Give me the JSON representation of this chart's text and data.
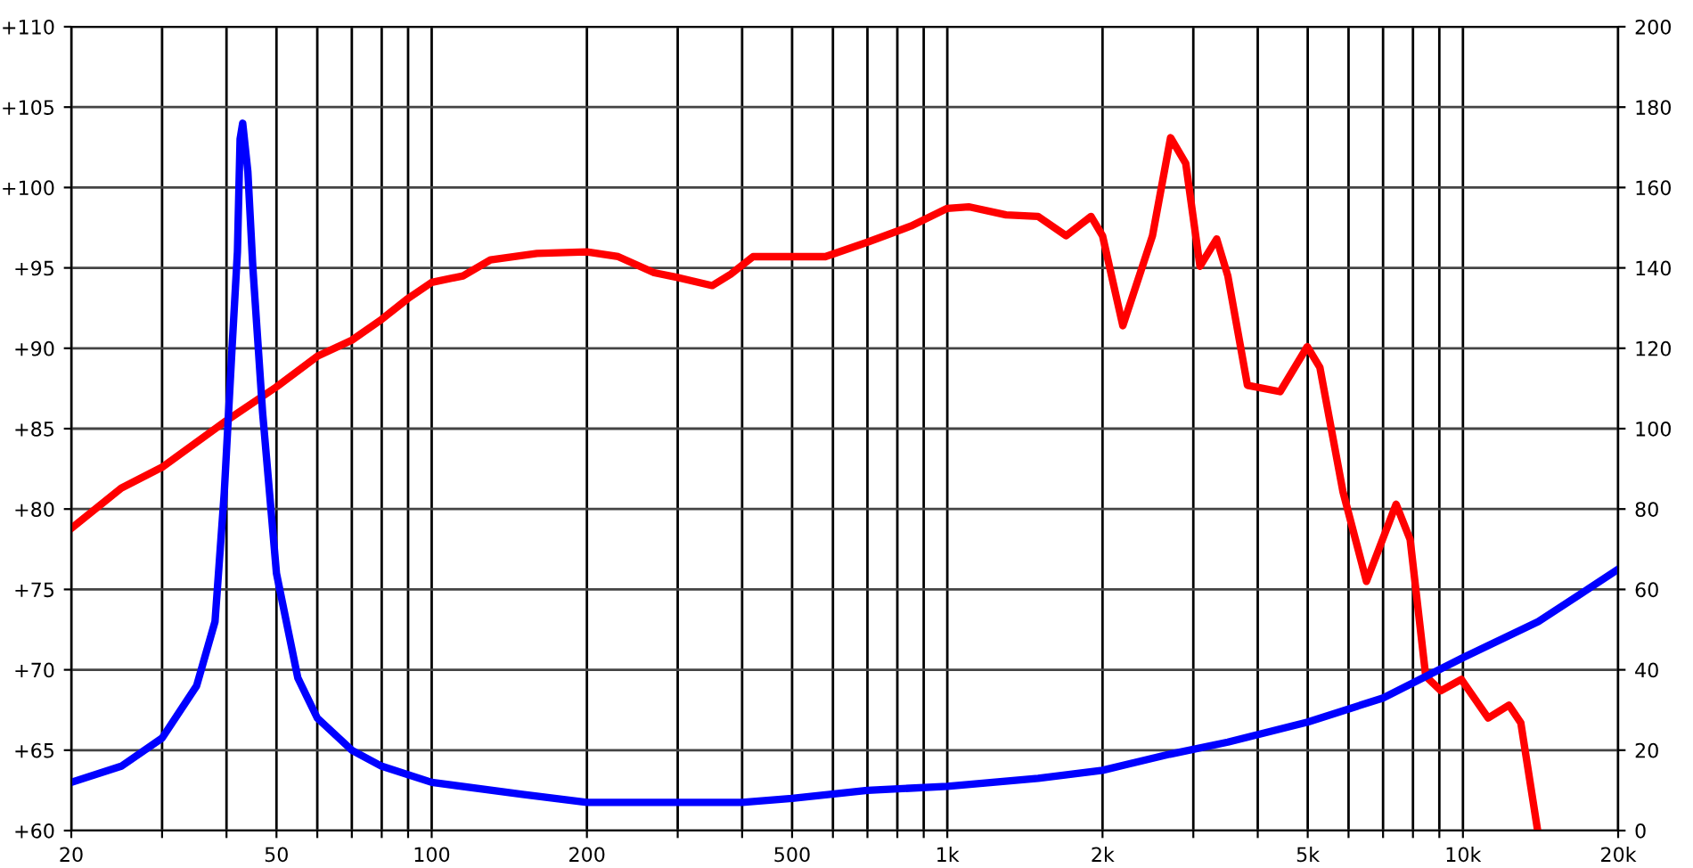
{
  "chart_data": {
    "type": "line",
    "log": "x",
    "grid": true,
    "xlim": [
      20,
      20000
    ],
    "xticks": [
      20,
      {
        "value": 30,
        "label": null
      },
      {
        "value": 40,
        "label": null
      },
      50,
      {
        "value": 60,
        "label": null
      },
      {
        "value": 70,
        "label": null
      },
      {
        "value": 80,
        "label": null
      },
      {
        "value": 90,
        "label": null
      },
      100,
      200,
      {
        "value": 300,
        "label": null
      },
      {
        "value": 400,
        "label": null
      },
      500,
      {
        "value": 600,
        "label": null
      },
      {
        "value": 700,
        "label": null
      },
      {
        "value": 800,
        "label": null
      },
      {
        "value": 900,
        "label": null
      },
      {
        "value": 1000,
        "label": "1k"
      },
      {
        "value": 2000,
        "label": "2k"
      },
      {
        "value": 3000,
        "label": null
      },
      {
        "value": 4000,
        "label": null
      },
      {
        "value": 5000,
        "label": "5k"
      },
      {
        "value": 6000,
        "label": null
      },
      {
        "value": 7000,
        "label": null
      },
      {
        "value": 8000,
        "label": null
      },
      {
        "value": 9000,
        "label": null
      },
      {
        "value": 10000,
        "label": "10k"
      },
      {
        "value": 20000,
        "label": "20k"
      }
    ],
    "ylim": [
      60,
      110
    ],
    "yticks": [
      {
        "value": 60,
        "label": "+60"
      },
      {
        "value": 65,
        "label": "+65"
      },
      {
        "value": 70,
        "label": "+70"
      },
      {
        "value": 75,
        "label": "+75"
      },
      {
        "value": 80,
        "label": "+80"
      },
      {
        "value": 85,
        "label": "+85"
      },
      {
        "value": 90,
        "label": "+90"
      },
      {
        "value": 95,
        "label": "+95"
      },
      {
        "value": 100,
        "label": "+100"
      },
      {
        "value": 105,
        "label": "+105"
      },
      {
        "value": 110,
        "label": "+110"
      }
    ],
    "y2lim": [
      0,
      200
    ],
    "y2ticks": [
      0,
      20,
      40,
      60,
      80,
      100,
      120,
      140,
      160,
      180,
      200
    ],
    "line_style": "solid",
    "marker": "none",
    "series": [
      {
        "color": "#ff0000",
        "x": [
          20,
          25,
          30,
          40,
          50,
          60,
          70,
          80,
          90,
          100,
          115,
          130,
          160,
          200,
          230,
          270,
          300,
          350,
          380,
          420,
          500,
          580,
          700,
          850,
          1000,
          1100,
          1300,
          1500,
          1700,
          1900,
          2000,
          2190,
          2500,
          2710,
          2900,
          3090,
          3330,
          3500,
          3820,
          4420,
          4990,
          5280,
          5850,
          6500,
          7420,
          7900,
          8470,
          9060,
          9930,
          11190,
          12280,
          12950,
          13960
        ],
        "values": [
          78.8,
          81.3,
          82.6,
          85.5,
          87.6,
          89.5,
          90.5,
          91.8,
          93.1,
          94.1,
          94.5,
          95.5,
          95.9,
          96.0,
          95.7,
          94.7,
          94.4,
          93.9,
          94.6,
          95.7,
          95.7,
          95.7,
          96.6,
          97.6,
          98.7,
          98.8,
          98.3,
          98.2,
          97.0,
          98.2,
          97.0,
          91.4,
          97.0,
          103.1,
          101.5,
          95.1,
          96.8,
          94.5,
          87.7,
          87.3,
          90.1,
          88.8,
          81.1,
          75.5,
          80.3,
          78.1,
          69.6,
          68.7,
          69.4,
          67.0,
          67.8,
          66.7,
          60.0
        ]
      },
      {
        "color": "#0000ff",
        "axis": "y2",
        "x": [
          20,
          25,
          30,
          35,
          38,
          39.6,
          41,
          42,
          42.5,
          43,
          44,
          45,
          47,
          50,
          55,
          60,
          70,
          80,
          100,
          150,
          200,
          300,
          400,
          500,
          700,
          1000,
          1500,
          2000,
          2700,
          3500,
          5000,
          7000,
          10000,
          14000,
          20000
        ],
        "values": [
          12,
          16,
          23,
          36,
          52,
          84,
          120,
          144,
          172,
          176,
          164,
          140,
          104,
          64,
          38,
          28,
          20,
          16,
          12,
          9,
          7,
          7,
          7,
          8,
          10,
          11,
          13,
          15,
          19,
          22,
          27,
          33,
          43,
          52,
          65
        ]
      }
    ]
  }
}
